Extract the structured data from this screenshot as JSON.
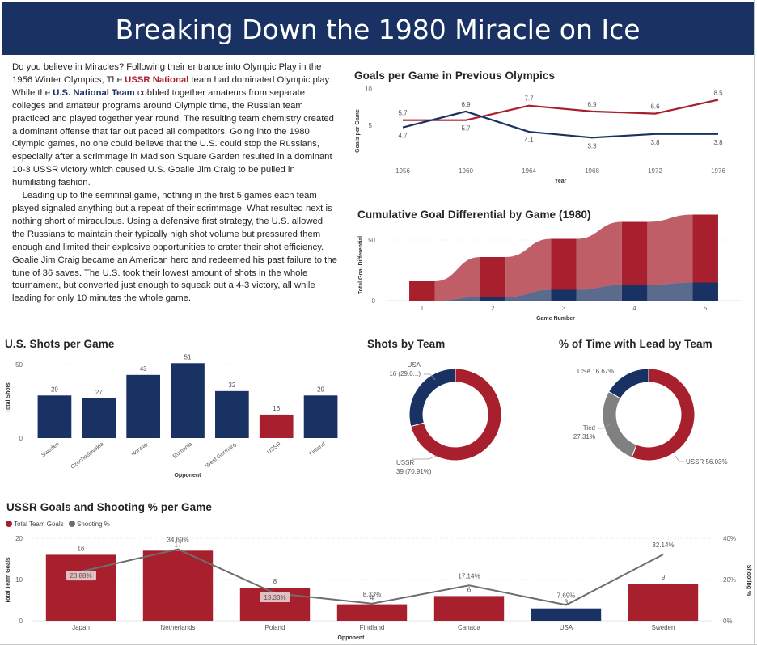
{
  "title": "Breaking Down the 1980 Miracle on Ice",
  "story": {
    "p1_a": "Do you believe in Miracles? Following their entrance into Olympic Play in the 1956 Winter Olympics, The ",
    "p1_ussr": "USSR National",
    "p1_b": " team had dominated Olympic play. While the ",
    "p1_us": "U.S. National Team",
    "p1_c": " cobbled together amateurs from separate colleges and amateur programs around Olympic time, the Russian team practiced and played together year round. The resulting team chemistry created a dominant offense that far out paced all competitors. Going into the 1980 Olympic games, no one could believe that the U.S. could stop the Russians, especially after a scrimmage in Madison Square Garden resulted in a dominant 10-3 USSR victory which caused U.S. Goalie Jim Craig to be pulled in humiliating fashion.",
    "p2": "Leading up to the semifinal game, nothing in the first 5 games each team played signaled anything but a repeat of their scrimmage. What resulted next is nothing short of miraculous. Using a defensive first strategy, the U.S. allowed the Russians to maintain their typically high shot volume but pressured them enough and limited their explosive opportunities to crater their shot efficiency. Goalie Jim Craig became an American hero and redeemed his past failure to the tune of 36 saves. The U.S. took their lowest amount of shots in the whole tournament, but converted just enough to squeak out a 4-3 victory, all while leading for only 10 minutes the whole game."
  },
  "colors": {
    "ussr": "#a8202e",
    "usa": "#1a3263",
    "tied": "#808080",
    "line_gray": "#6e6e6e"
  },
  "chart_data": [
    {
      "id": "goals_per_game",
      "type": "line",
      "title": "Goals per Game in Previous Olympics",
      "xlabel": "Year",
      "ylabel": "Goals per Game",
      "x": [
        "1956",
        "1960",
        "1964",
        "1968",
        "1972",
        "1976"
      ],
      "ylim": [
        0,
        10
      ],
      "yticks": [
        "5",
        "10"
      ],
      "series": [
        {
          "name": "USSR",
          "values": [
            5.7,
            5.7,
            7.7,
            6.9,
            6.6,
            8.5
          ],
          "labels": [
            "5.7",
            "5.7",
            "7.7",
            "6.9",
            "6.6",
            "8.5"
          ]
        },
        {
          "name": "USA",
          "values": [
            4.7,
            6.9,
            4.1,
            3.3,
            3.8,
            3.8
          ],
          "labels": [
            "4.7",
            "6.9",
            "4.1",
            "3.3",
            "3.8",
            "3.8"
          ]
        }
      ]
    },
    {
      "id": "cumulative_diff",
      "type": "area",
      "title": "Cumulative Goal Differential by Game (1980)",
      "xlabel": "Game Number",
      "ylabel": "Total Goal Differential",
      "categories": [
        "1",
        "2",
        "3",
        "4",
        "5"
      ],
      "ylim": [
        0,
        60
      ],
      "yticks": [
        "0",
        "50"
      ],
      "series": [
        {
          "name": "USSR",
          "values": [
            16,
            33,
            42,
            52,
            56
          ]
        },
        {
          "name": "USA",
          "values": [
            0,
            3,
            9,
            13,
            15
          ]
        }
      ]
    },
    {
      "id": "us_shots",
      "type": "bar",
      "title": "U.S. Shots per Game",
      "xlabel": "Opponent",
      "ylabel": "Total Shots",
      "categories": [
        "Sweden",
        "Czechoslovakia",
        "Norway",
        "Romania",
        "West Germany",
        "USSR",
        "Finland"
      ],
      "values": [
        29,
        27,
        43,
        51,
        32,
        16,
        29
      ],
      "labels": [
        "29",
        "27",
        "43",
        "51",
        "32",
        "16",
        "29"
      ],
      "highlight": "USSR",
      "ylim": [
        0,
        55
      ],
      "yticks": [
        "0",
        "50"
      ]
    },
    {
      "id": "shots_by_team",
      "type": "pie",
      "title": "Shots by Team",
      "slices": [
        {
          "name": "USA",
          "value": 16,
          "label_name": "USA",
          "label_value": "16 (29.0...)"
        },
        {
          "name": "USSR",
          "value": 39,
          "label_name": "USSR",
          "label_value": "39 (70.91%)"
        }
      ]
    },
    {
      "id": "time_with_lead",
      "type": "pie",
      "title": "% of Time with Lead by Team",
      "slices": [
        {
          "name": "USA",
          "value": 16.67,
          "label": "USA 16.67%"
        },
        {
          "name": "USSR",
          "value": 56.03,
          "label": "USSR 56.03%"
        },
        {
          "name": "Tied",
          "value": 27.31,
          "label_name": "Tied",
          "label_value": "27.31%"
        }
      ]
    },
    {
      "id": "ussr_goals",
      "type": "bar",
      "title": "USSR Goals and Shooting % per Game",
      "xlabel": "Opponent",
      "ylabel": "Total Team Goals",
      "y2label": "Shooting %",
      "legend": [
        "Total Team Goals",
        "Shooting %"
      ],
      "categories": [
        "Japan",
        "Netherlands",
        "Poland",
        "Findland",
        "Canada",
        "USA",
        "Sweden"
      ],
      "goals": [
        16,
        17,
        8,
        4,
        6,
        3,
        9
      ],
      "goal_labels": [
        "16",
        "17",
        "8",
        "4",
        "6",
        "3",
        "9"
      ],
      "shooting_pct": [
        23.88,
        34.69,
        13.33,
        8.33,
        17.14,
        7.69,
        32.14
      ],
      "pct_labels": [
        "23.88%",
        "34.69%",
        "13.33%",
        "8.33%",
        "17.14%",
        "7.69%",
        "32.14%"
      ],
      "highlight": "USA",
      "ylim": [
        0,
        20
      ],
      "yticks": [
        "0",
        "10",
        "20"
      ],
      "y2lim": [
        0,
        40
      ],
      "y2ticks": [
        "0%",
        "20%",
        "40%"
      ]
    }
  ]
}
